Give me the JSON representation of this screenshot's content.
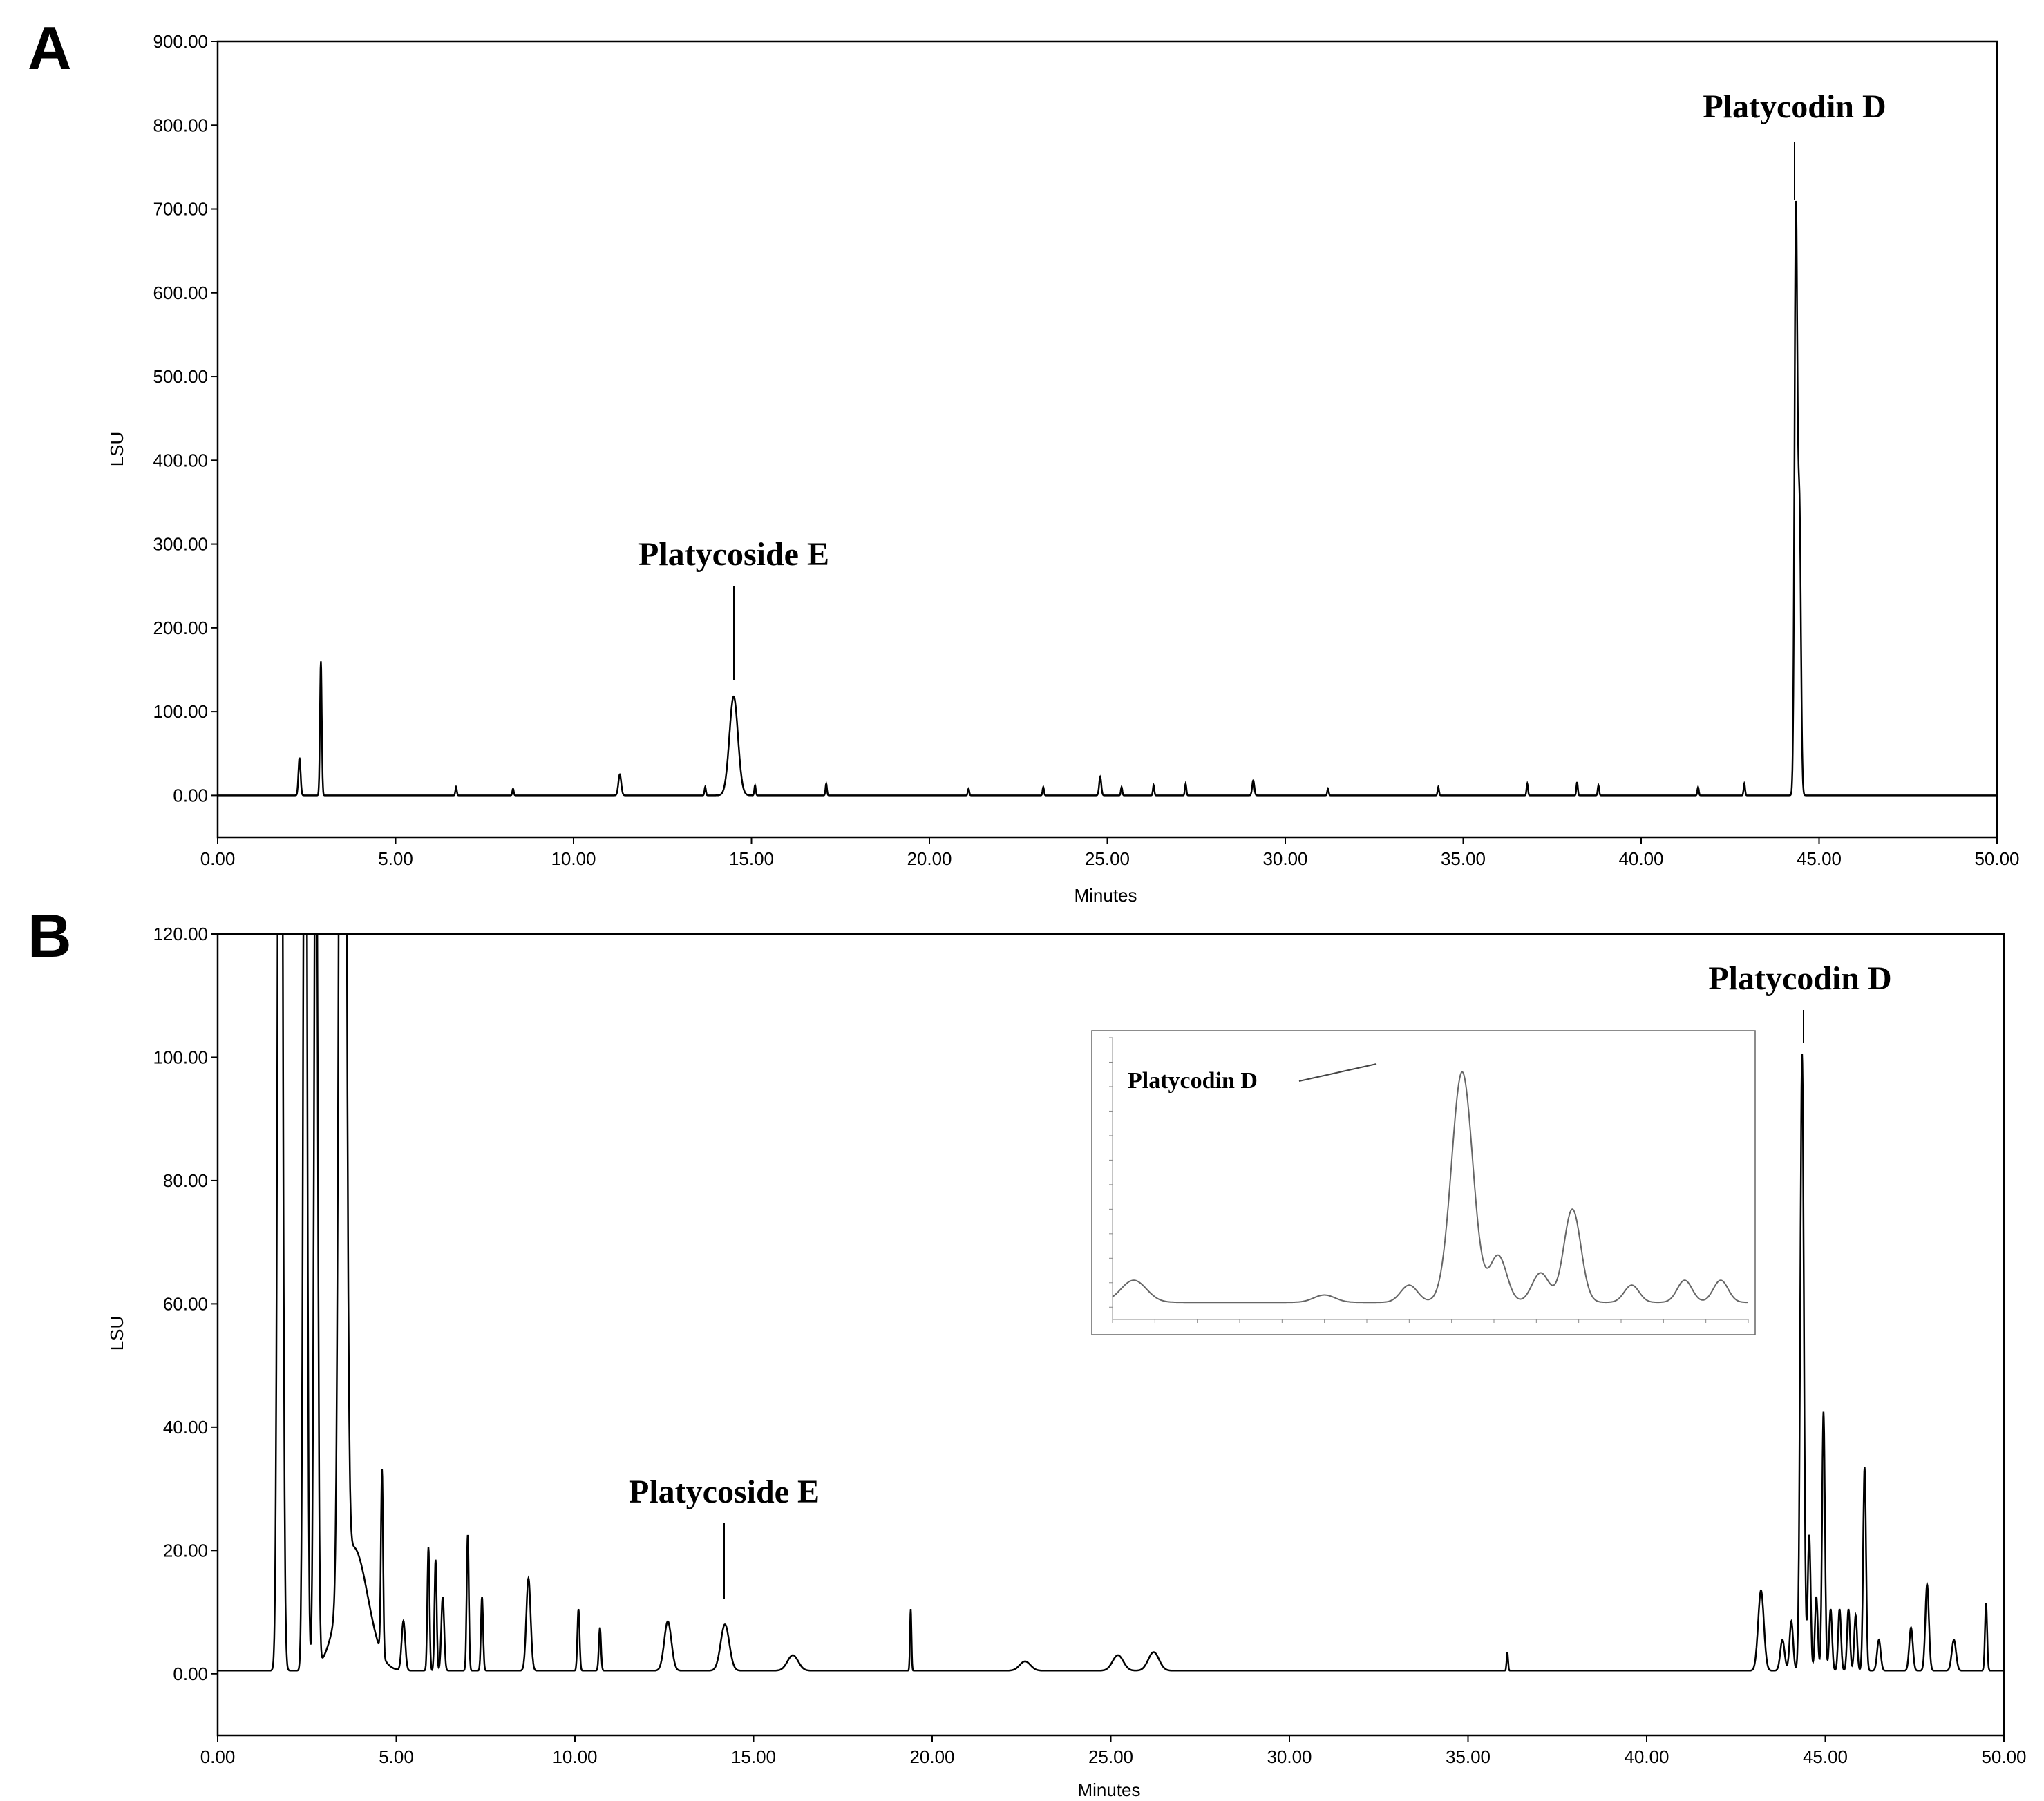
{
  "chart_data": [
    {
      "panel": "A",
      "type": "line",
      "xlabel": "Minutes",
      "ylabel": "LSU",
      "xlim": [
        0,
        50
      ],
      "ylim": [
        -50,
        900
      ],
      "x_ticks": [
        "0.00",
        "5.00",
        "10.00",
        "15.00",
        "20.00",
        "25.00",
        "30.00",
        "35.00",
        "40.00",
        "45.00",
        "50.00"
      ],
      "y_ticks": [
        "0.00",
        "100.00",
        "200.00",
        "300.00",
        "400.00",
        "500.00",
        "600.00",
        "700.00",
        "800.00",
        "900.00"
      ],
      "grid": false,
      "legend": "none",
      "baseline": 0,
      "peaks": [
        {
          "x": 2.3,
          "y": 45,
          "w": 0.03
        },
        {
          "x": 2.9,
          "y": 160,
          "w": 0.025
        },
        {
          "x": 6.7,
          "y": 10,
          "w": 0.02
        },
        {
          "x": 8.3,
          "y": 8,
          "w": 0.02
        },
        {
          "x": 11.3,
          "y": 25,
          "w": 0.04
        },
        {
          "x": 13.7,
          "y": 10,
          "w": 0.02
        },
        {
          "x": 14.5,
          "y": 118,
          "w": 0.12
        },
        {
          "x": 15.1,
          "y": 12,
          "w": 0.02
        },
        {
          "x": 17.1,
          "y": 14,
          "w": 0.02
        },
        {
          "x": 21.1,
          "y": 8,
          "w": 0.02
        },
        {
          "x": 23.2,
          "y": 10,
          "w": 0.02
        },
        {
          "x": 24.8,
          "y": 22,
          "w": 0.03
        },
        {
          "x": 25.4,
          "y": 10,
          "w": 0.02
        },
        {
          "x": 26.3,
          "y": 12,
          "w": 0.02
        },
        {
          "x": 27.2,
          "y": 14,
          "w": 0.02
        },
        {
          "x": 29.1,
          "y": 18,
          "w": 0.03
        },
        {
          "x": 31.2,
          "y": 8,
          "w": 0.02
        },
        {
          "x": 34.3,
          "y": 10,
          "w": 0.02
        },
        {
          "x": 36.8,
          "y": 14,
          "w": 0.02
        },
        {
          "x": 38.2,
          "y": 16,
          "w": 0.02
        },
        {
          "x": 38.8,
          "y": 12,
          "w": 0.02
        },
        {
          "x": 41.6,
          "y": 10,
          "w": 0.02
        },
        {
          "x": 42.9,
          "y": 14,
          "w": 0.02
        },
        {
          "x": 44.35,
          "y": 695,
          "w": 0.04
        },
        {
          "x": 44.45,
          "y": 330,
          "w": 0.04
        }
      ],
      "annotations": [
        {
          "text": "Platycoside E",
          "x": 14.5,
          "peak_y": 118,
          "label_y": 280
        },
        {
          "text": "Platycodin D",
          "x": 44.35,
          "peak_y": 695,
          "label_y": 800
        }
      ]
    },
    {
      "panel": "B",
      "type": "line",
      "xlabel": "Minutes",
      "ylabel": "LSU",
      "xlim": [
        0,
        50
      ],
      "ylim": [
        -10,
        120
      ],
      "x_ticks": [
        "0.00",
        "5.00",
        "10.00",
        "15.00",
        "20.00",
        "25.00",
        "30.00",
        "35.00",
        "40.00",
        "45.00",
        "50.00"
      ],
      "y_ticks": [
        "0.00",
        "20.00",
        "40.00",
        "60.00",
        "80.00",
        "100.00",
        "120.00"
      ],
      "grid": false,
      "legend": "none",
      "baseline": 0.5,
      "peaks": [
        {
          "x": 1.75,
          "y": 250,
          "w": 0.06
        },
        {
          "x": 2.45,
          "y": 200,
          "w": 0.05
        },
        {
          "x": 2.75,
          "y": 160,
          "w": 0.05
        },
        {
          "x": 3.5,
          "y": 300,
          "w": 0.08
        },
        {
          "x": 3.8,
          "y": 20,
          "w": 0.4
        },
        {
          "x": 4.6,
          "y": 30,
          "w": 0.03
        },
        {
          "x": 5.2,
          "y": 8,
          "w": 0.05
        },
        {
          "x": 5.9,
          "y": 20,
          "w": 0.03
        },
        {
          "x": 6.1,
          "y": 18,
          "w": 0.03
        },
        {
          "x": 6.3,
          "y": 12,
          "w": 0.04
        },
        {
          "x": 7.0,
          "y": 22,
          "w": 0.03
        },
        {
          "x": 7.4,
          "y": 12,
          "w": 0.03
        },
        {
          "x": 8.7,
          "y": 15,
          "w": 0.06
        },
        {
          "x": 10.1,
          "y": 10,
          "w": 0.03
        },
        {
          "x": 10.7,
          "y": 7,
          "w": 0.03
        },
        {
          "x": 12.6,
          "y": 8,
          "w": 0.1
        },
        {
          "x": 14.2,
          "y": 7.5,
          "w": 0.12
        },
        {
          "x": 16.1,
          "y": 2.5,
          "w": 0.15
        },
        {
          "x": 19.4,
          "y": 10,
          "w": 0.02
        },
        {
          "x": 22.6,
          "y": 1.5,
          "w": 0.15
        },
        {
          "x": 25.2,
          "y": 2.5,
          "w": 0.15
        },
        {
          "x": 26.2,
          "y": 3,
          "w": 0.15
        },
        {
          "x": 36.1,
          "y": 3,
          "w": 0.02
        },
        {
          "x": 43.2,
          "y": 13,
          "w": 0.08
        },
        {
          "x": 43.8,
          "y": 5,
          "w": 0.06
        },
        {
          "x": 44.05,
          "y": 8,
          "w": 0.05
        },
        {
          "x": 44.35,
          "y": 100,
          "w": 0.05
        },
        {
          "x": 44.55,
          "y": 22,
          "w": 0.04
        },
        {
          "x": 44.75,
          "y": 12,
          "w": 0.04
        },
        {
          "x": 44.95,
          "y": 42,
          "w": 0.04
        },
        {
          "x": 45.15,
          "y": 10,
          "w": 0.04
        },
        {
          "x": 45.4,
          "y": 10,
          "w": 0.04
        },
        {
          "x": 45.65,
          "y": 10,
          "w": 0.04
        },
        {
          "x": 45.85,
          "y": 9,
          "w": 0.04
        },
        {
          "x": 46.1,
          "y": 33,
          "w": 0.04
        },
        {
          "x": 46.5,
          "y": 5,
          "w": 0.05
        },
        {
          "x": 47.4,
          "y": 7,
          "w": 0.05
        },
        {
          "x": 47.85,
          "y": 14,
          "w": 0.05
        },
        {
          "x": 48.6,
          "y": 5,
          "w": 0.06
        },
        {
          "x": 49.5,
          "y": 11,
          "w": 0.03
        }
      ],
      "annotations": [
        {
          "text": "Platycoside E",
          "x": 14.2,
          "peak_y": 9,
          "label_y": 28
        },
        {
          "text": "Platycodin D",
          "x": 44.35,
          "peak_y": 100,
          "label_y": 113
        }
      ],
      "inset": {
        "xlim": [
          43.0,
          46.0
        ],
        "ylim": [
          -5,
          110
        ],
        "peaks": [
          {
            "x": 43.1,
            "y": 9,
            "w": 0.06
          },
          {
            "x": 44.0,
            "y": 3,
            "w": 0.05
          },
          {
            "x": 44.4,
            "y": 7,
            "w": 0.04
          },
          {
            "x": 44.65,
            "y": 94,
            "w": 0.05
          },
          {
            "x": 44.82,
            "y": 19,
            "w": 0.04
          },
          {
            "x": 45.02,
            "y": 12,
            "w": 0.04
          },
          {
            "x": 45.17,
            "y": 38,
            "w": 0.04
          },
          {
            "x": 45.45,
            "y": 7,
            "w": 0.035
          },
          {
            "x": 45.7,
            "y": 9,
            "w": 0.035
          },
          {
            "x": 45.87,
            "y": 9,
            "w": 0.035
          }
        ],
        "baseline": 2,
        "annotation": {
          "text": "Platycodin D",
          "x": 44.65,
          "peak_y": 100
        }
      }
    }
  ],
  "panels": {
    "a_letter": "A",
    "b_letter": "B",
    "a_annot_1": "Platycoside E",
    "a_annot_2": "Platycodin D",
    "b_annot_1": "Platycoside E",
    "b_annot_2": "Platycodin D",
    "b_inset_annot": "Platycodin D",
    "a_xlabel": "Minutes",
    "a_ylabel": "LSU",
    "b_xlabel": "Minutes",
    "b_ylabel": "LSU"
  }
}
